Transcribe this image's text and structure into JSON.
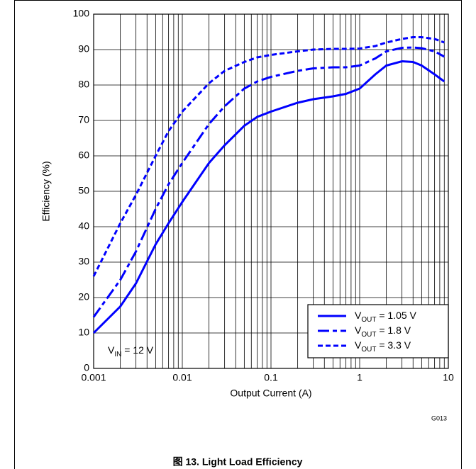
{
  "chart_data": {
    "type": "line",
    "xlabel": "Output Current (A)",
    "ylabel": "Efficiency (%)",
    "xscale": "log",
    "xlim": [
      0.001,
      10
    ],
    "xticks": [
      0.001,
      0.01,
      0.1,
      1,
      10
    ],
    "ylim": [
      0,
      100
    ],
    "yticks": [
      0,
      10,
      20,
      30,
      40,
      50,
      60,
      70,
      80,
      90,
      100
    ],
    "grid": true,
    "legend": "lower right",
    "x": [
      0.001,
      0.002,
      0.003,
      0.005,
      0.007,
      0.01,
      0.02,
      0.03,
      0.05,
      0.07,
      0.1,
      0.2,
      0.3,
      0.5,
      0.7,
      1,
      1.5,
      2,
      3,
      4,
      5,
      7,
      9
    ],
    "series": [
      {
        "name": "VOUT = 1.05 V",
        "color": "#0000ff",
        "linestyle": "solid",
        "values": [
          10,
          17.5,
          24,
          35,
          41,
          47,
          58,
          63,
          68.5,
          71,
          72.5,
          75,
          76,
          76.8,
          77.5,
          79,
          83,
          85.5,
          86.7,
          86.5,
          85.5,
          83,
          81
        ]
      },
      {
        "name": "VOUT = 1.8 V",
        "color": "#0000ff",
        "linestyle": "dashdot",
        "values": [
          14.5,
          25,
          33,
          45,
          52,
          58,
          69,
          74,
          79,
          81,
          82.3,
          84,
          84.7,
          85,
          85,
          85.5,
          87.5,
          89.5,
          90.5,
          90.6,
          90.4,
          89.5,
          88
        ]
      },
      {
        "name": "VOUT = 3.3 V",
        "color": "#0000ff",
        "linestyle": "dashed",
        "values": [
          26,
          41,
          49,
          60,
          67,
          72.5,
          80.5,
          84,
          86.5,
          87.8,
          88.5,
          89.5,
          90,
          90.2,
          90.2,
          90.3,
          91,
          92,
          93,
          93.5,
          93.5,
          93,
          92
        ]
      }
    ],
    "annotations": [
      "VIN = 12 V"
    ],
    "figure_code": "G013",
    "caption": "图 13. Light Load Efficiency"
  }
}
